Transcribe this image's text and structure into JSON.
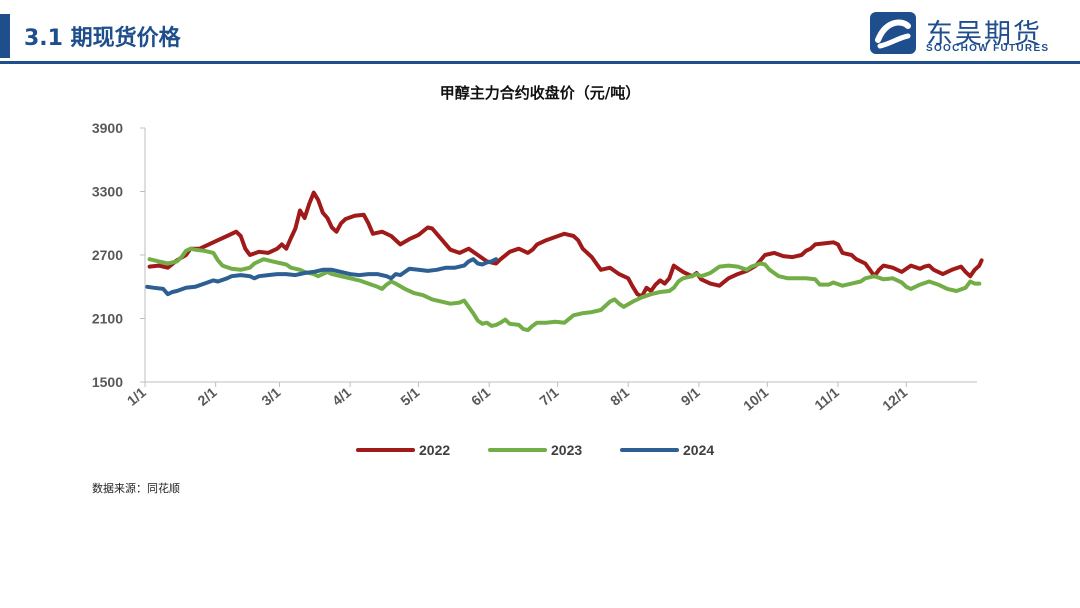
{
  "header": {
    "section_title": "3.1 期现货价格"
  },
  "logo": {
    "name_cn": "东吴期货",
    "name_en": "SOOCHOW FUTURES"
  },
  "source": "数据来源：同花顺",
  "colors": {
    "brand": "#1f4e8c",
    "s2022": "#a01a1a",
    "s2023": "#72ad47",
    "s2024": "#2e5f93"
  },
  "chart_data": {
    "type": "line",
    "title": "甲醇主力合约收盘价（元/吨）",
    "xlabel": "",
    "ylabel": "",
    "ylim": [
      1500,
      3900
    ],
    "yticks": [
      1500,
      2100,
      2700,
      3300,
      3900
    ],
    "xlim": [
      0,
      365
    ],
    "xticks": [
      "1/1",
      "2/1",
      "3/1",
      "4/1",
      "5/1",
      "6/1",
      "7/1",
      "8/1",
      "9/1",
      "10/1",
      "11/1",
      "12/1"
    ],
    "xtick_days": [
      0,
      31,
      59,
      90,
      120,
      151,
      181,
      212,
      243,
      273,
      304,
      334
    ],
    "grid": false,
    "legend": "bottom",
    "series": [
      {
        "name": "2022",
        "points": [
          [
            2,
            2590
          ],
          [
            6,
            2600
          ],
          [
            10,
            2580
          ],
          [
            14,
            2650
          ],
          [
            18,
            2700
          ],
          [
            20,
            2760
          ],
          [
            24,
            2760
          ],
          [
            28,
            2800
          ],
          [
            32,
            2840
          ],
          [
            36,
            2880
          ],
          [
            40,
            2920
          ],
          [
            42,
            2880
          ],
          [
            44,
            2760
          ],
          [
            46,
            2700
          ],
          [
            50,
            2730
          ],
          [
            54,
            2720
          ],
          [
            58,
            2760
          ],
          [
            60,
            2800
          ],
          [
            62,
            2760
          ],
          [
            64,
            2860
          ],
          [
            66,
            2950
          ],
          [
            68,
            3120
          ],
          [
            70,
            3050
          ],
          [
            72,
            3180
          ],
          [
            74,
            3290
          ],
          [
            76,
            3220
          ],
          [
            78,
            3100
          ],
          [
            80,
            3050
          ],
          [
            82,
            2960
          ],
          [
            84,
            2920
          ],
          [
            86,
            3000
          ],
          [
            88,
            3040
          ],
          [
            92,
            3070
          ],
          [
            96,
            3080
          ],
          [
            98,
            3000
          ],
          [
            100,
            2900
          ],
          [
            104,
            2920
          ],
          [
            108,
            2880
          ],
          [
            112,
            2800
          ],
          [
            116,
            2850
          ],
          [
            120,
            2890
          ],
          [
            124,
            2960
          ],
          [
            126,
            2950
          ],
          [
            130,
            2850
          ],
          [
            134,
            2750
          ],
          [
            138,
            2720
          ],
          [
            142,
            2760
          ],
          [
            146,
            2700
          ],
          [
            150,
            2640
          ],
          [
            154,
            2620
          ],
          [
            156,
            2660
          ],
          [
            160,
            2730
          ],
          [
            164,
            2760
          ],
          [
            168,
            2720
          ],
          [
            170,
            2750
          ],
          [
            172,
            2800
          ],
          [
            176,
            2840
          ],
          [
            180,
            2870
          ],
          [
            184,
            2900
          ],
          [
            188,
            2880
          ],
          [
            190,
            2840
          ],
          [
            192,
            2760
          ],
          [
            196,
            2680
          ],
          [
            198,
            2620
          ],
          [
            200,
            2560
          ],
          [
            204,
            2580
          ],
          [
            208,
            2520
          ],
          [
            212,
            2480
          ],
          [
            214,
            2400
          ],
          [
            216,
            2330
          ],
          [
            218,
            2310
          ],
          [
            220,
            2390
          ],
          [
            222,
            2360
          ],
          [
            224,
            2420
          ],
          [
            226,
            2460
          ],
          [
            228,
            2430
          ],
          [
            230,
            2480
          ],
          [
            232,
            2600
          ],
          [
            234,
            2570
          ],
          [
            236,
            2540
          ],
          [
            240,
            2500
          ],
          [
            242,
            2530
          ],
          [
            244,
            2470
          ],
          [
            248,
            2430
          ],
          [
            252,
            2410
          ],
          [
            256,
            2480
          ],
          [
            260,
            2520
          ],
          [
            264,
            2550
          ],
          [
            268,
            2600
          ],
          [
            270,
            2650
          ],
          [
            272,
            2700
          ],
          [
            276,
            2720
          ],
          [
            280,
            2690
          ],
          [
            284,
            2680
          ],
          [
            288,
            2700
          ],
          [
            290,
            2740
          ],
          [
            292,
            2760
          ],
          [
            294,
            2800
          ],
          [
            298,
            2810
          ],
          [
            302,
            2820
          ],
          [
            304,
            2800
          ],
          [
            306,
            2720
          ],
          [
            310,
            2700
          ],
          [
            312,
            2660
          ],
          [
            316,
            2620
          ],
          [
            318,
            2560
          ],
          [
            320,
            2500
          ],
          [
            322,
            2560
          ],
          [
            324,
            2600
          ],
          [
            328,
            2580
          ],
          [
            332,
            2540
          ],
          [
            336,
            2600
          ],
          [
            340,
            2570
          ],
          [
            342,
            2590
          ],
          [
            344,
            2600
          ],
          [
            346,
            2560
          ],
          [
            350,
            2520
          ],
          [
            354,
            2560
          ],
          [
            358,
            2590
          ],
          [
            360,
            2540
          ],
          [
            362,
            2500
          ],
          [
            364,
            2560
          ],
          [
            366,
            2600
          ],
          [
            367,
            2650
          ]
        ]
      },
      {
        "name": "2023",
        "points": [
          [
            2,
            2660
          ],
          [
            6,
            2640
          ],
          [
            10,
            2620
          ],
          [
            14,
            2640
          ],
          [
            16,
            2680
          ],
          [
            18,
            2740
          ],
          [
            20,
            2760
          ],
          [
            22,
            2750
          ],
          [
            26,
            2740
          ],
          [
            30,
            2720
          ],
          [
            32,
            2650
          ],
          [
            34,
            2600
          ],
          [
            38,
            2570
          ],
          [
            42,
            2560
          ],
          [
            46,
            2580
          ],
          [
            48,
            2620
          ],
          [
            52,
            2660
          ],
          [
            56,
            2640
          ],
          [
            60,
            2620
          ],
          [
            62,
            2610
          ],
          [
            64,
            2580
          ],
          [
            68,
            2560
          ],
          [
            70,
            2540
          ],
          [
            74,
            2520
          ],
          [
            76,
            2500
          ],
          [
            80,
            2540
          ],
          [
            82,
            2520
          ],
          [
            86,
            2500
          ],
          [
            90,
            2480
          ],
          [
            94,
            2460
          ],
          [
            98,
            2430
          ],
          [
            102,
            2400
          ],
          [
            104,
            2380
          ],
          [
            106,
            2420
          ],
          [
            108,
            2450
          ],
          [
            110,
            2430
          ],
          [
            114,
            2380
          ],
          [
            118,
            2340
          ],
          [
            122,
            2320
          ],
          [
            126,
            2280
          ],
          [
            130,
            2260
          ],
          [
            134,
            2240
          ],
          [
            138,
            2250
          ],
          [
            140,
            2270
          ],
          [
            142,
            2210
          ],
          [
            144,
            2150
          ],
          [
            146,
            2080
          ],
          [
            148,
            2050
          ],
          [
            150,
            2060
          ],
          [
            152,
            2030
          ],
          [
            154,
            2040
          ],
          [
            156,
            2060
          ],
          [
            158,
            2090
          ],
          [
            160,
            2050
          ],
          [
            164,
            2040
          ],
          [
            166,
            2000
          ],
          [
            168,
            1990
          ],
          [
            170,
            2030
          ],
          [
            172,
            2060
          ],
          [
            176,
            2060
          ],
          [
            180,
            2070
          ],
          [
            184,
            2060
          ],
          [
            188,
            2130
          ],
          [
            192,
            2150
          ],
          [
            196,
            2160
          ],
          [
            200,
            2180
          ],
          [
            204,
            2260
          ],
          [
            206,
            2280
          ],
          [
            208,
            2240
          ],
          [
            210,
            2210
          ],
          [
            214,
            2260
          ],
          [
            218,
            2300
          ],
          [
            222,
            2330
          ],
          [
            226,
            2350
          ],
          [
            230,
            2360
          ],
          [
            232,
            2390
          ],
          [
            234,
            2450
          ],
          [
            236,
            2480
          ],
          [
            240,
            2500
          ],
          [
            242,
            2520
          ],
          [
            244,
            2500
          ],
          [
            248,
            2530
          ],
          [
            250,
            2560
          ],
          [
            252,
            2590
          ],
          [
            256,
            2600
          ],
          [
            260,
            2590
          ],
          [
            264,
            2560
          ],
          [
            266,
            2590
          ],
          [
            270,
            2620
          ],
          [
            272,
            2610
          ],
          [
            274,
            2560
          ],
          [
            278,
            2500
          ],
          [
            282,
            2480
          ],
          [
            286,
            2480
          ],
          [
            290,
            2480
          ],
          [
            294,
            2470
          ],
          [
            296,
            2420
          ],
          [
            300,
            2420
          ],
          [
            302,
            2440
          ],
          [
            306,
            2410
          ],
          [
            310,
            2430
          ],
          [
            314,
            2450
          ],
          [
            316,
            2480
          ],
          [
            320,
            2500
          ],
          [
            324,
            2470
          ],
          [
            328,
            2480
          ],
          [
            332,
            2440
          ],
          [
            334,
            2400
          ],
          [
            336,
            2380
          ],
          [
            340,
            2420
          ],
          [
            344,
            2450
          ],
          [
            348,
            2420
          ],
          [
            352,
            2380
          ],
          [
            356,
            2360
          ],
          [
            360,
            2390
          ],
          [
            362,
            2450
          ],
          [
            364,
            2430
          ],
          [
            366,
            2430
          ]
        ]
      },
      {
        "name": "2024",
        "points": [
          [
            1,
            2400
          ],
          [
            4,
            2390
          ],
          [
            8,
            2380
          ],
          [
            10,
            2330
          ],
          [
            12,
            2350
          ],
          [
            14,
            2360
          ],
          [
            18,
            2390
          ],
          [
            22,
            2400
          ],
          [
            26,
            2430
          ],
          [
            30,
            2460
          ],
          [
            32,
            2450
          ],
          [
            36,
            2480
          ],
          [
            38,
            2500
          ],
          [
            42,
            2510
          ],
          [
            46,
            2500
          ],
          [
            48,
            2480
          ],
          [
            50,
            2500
          ],
          [
            54,
            2510
          ],
          [
            58,
            2520
          ],
          [
            62,
            2520
          ],
          [
            66,
            2510
          ],
          [
            70,
            2530
          ],
          [
            74,
            2540
          ],
          [
            78,
            2560
          ],
          [
            82,
            2560
          ],
          [
            86,
            2540
          ],
          [
            90,
            2520
          ],
          [
            94,
            2510
          ],
          [
            98,
            2520
          ],
          [
            102,
            2520
          ],
          [
            106,
            2500
          ],
          [
            108,
            2480
          ],
          [
            110,
            2520
          ],
          [
            112,
            2510
          ],
          [
            114,
            2540
          ],
          [
            116,
            2570
          ],
          [
            120,
            2560
          ],
          [
            124,
            2550
          ],
          [
            128,
            2560
          ],
          [
            132,
            2580
          ],
          [
            136,
            2580
          ],
          [
            140,
            2600
          ],
          [
            142,
            2640
          ],
          [
            144,
            2660
          ],
          [
            146,
            2620
          ],
          [
            148,
            2610
          ],
          [
            150,
            2630
          ],
          [
            152,
            2640
          ],
          [
            154,
            2660
          ]
        ]
      }
    ]
  }
}
